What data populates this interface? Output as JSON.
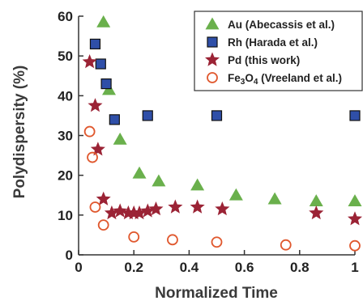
{
  "chart_data": {
    "type": "scatter",
    "xlabel": "Normalized Time",
    "ylabel": "Polydispersity (%)",
    "xlim": [
      0,
      1
    ],
    "ylim": [
      0,
      60
    ],
    "xticks": [
      0,
      0.2,
      0.4,
      0.6,
      0.8,
      1
    ],
    "xtick_labels": [
      "0",
      "0.2",
      "0.4",
      "0.6",
      "0.8",
      "1"
    ],
    "yticks": [
      0,
      10,
      20,
      30,
      40,
      50,
      60
    ],
    "ytick_labels": [
      "0",
      "10",
      "20",
      "30",
      "40",
      "50",
      "60"
    ],
    "grid": false,
    "legend_position": "top-right",
    "series": [
      {
        "name": "Au (Abecassis et al.)",
        "name_parts": [
          "Au (Abecassis et al.)"
        ],
        "marker": "triangle",
        "color": "#6ab04c",
        "x": [
          0.09,
          0.11,
          0.15,
          0.22,
          0.29,
          0.43,
          0.57,
          0.71,
          0.86,
          1.0
        ],
        "y": [
          58.5,
          41.5,
          29,
          20.5,
          18.5,
          17.5,
          15,
          14,
          13.5,
          13.5
        ]
      },
      {
        "name": "Rh (Harada et al.)",
        "name_parts": [
          "Rh (Harada et al.)"
        ],
        "marker": "square",
        "color": "#2f4fa8",
        "x": [
          0.06,
          0.08,
          0.1,
          0.13,
          0.25,
          0.5,
          1.0
        ],
        "y": [
          53,
          48,
          43,
          34,
          35,
          35,
          35
        ]
      },
      {
        "name": "Pd (this work)",
        "name_parts": [
          "Pd (this work)"
        ],
        "marker": "star",
        "color": "#9b2335",
        "x": [
          0.04,
          0.06,
          0.07,
          0.09,
          0.12,
          0.15,
          0.18,
          0.2,
          0.22,
          0.25,
          0.28,
          0.35,
          0.43,
          0.52,
          0.86,
          1.0
        ],
        "y": [
          48.5,
          37.5,
          26.5,
          14,
          10.5,
          11,
          10.5,
          10.5,
          10.5,
          11,
          11.5,
          12,
          12,
          11.5,
          10.5,
          9
        ]
      },
      {
        "name": "Fe3O4 (Vreeland et al.)",
        "name_parts": [
          "Fe",
          "3",
          "O",
          "4",
          " (Vreeland et al.)"
        ],
        "marker": "circle-open",
        "color": "#e0582e",
        "x": [
          0.04,
          0.05,
          0.06,
          0.09,
          0.2,
          0.34,
          0.5,
          0.75,
          1.0
        ],
        "y": [
          31,
          24.5,
          12,
          7.5,
          4.5,
          3.8,
          3.2,
          2.5,
          2.3
        ]
      }
    ]
  }
}
